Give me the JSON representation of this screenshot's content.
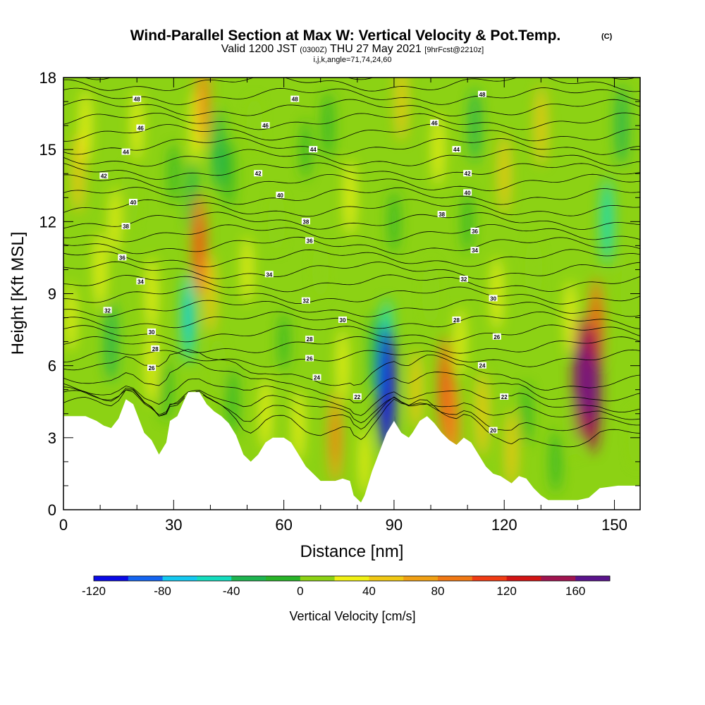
{
  "chart_data": {
    "type": "heatmap",
    "title": "Wind-Parallel Section at Max W: Vertical Velocity & Pot.Temp.",
    "title_mark": "(C)",
    "subtitle": {
      "prefix": "Valid 1200 JST",
      "utc": "(0300Z)",
      "date": "THU 27 May 2021",
      "forecast": "[9hrFcst@2210z]"
    },
    "params": "i,j,k,angle=71,74,24,60",
    "xlabel": "Distance [nm]",
    "ylabel": "Height [Kft MSL]",
    "xlim": [
      0,
      157
    ],
    "ylim": [
      0,
      18
    ],
    "x_ticks": [
      0,
      30,
      60,
      90,
      120,
      150
    ],
    "y_ticks": [
      0,
      3,
      6,
      9,
      12,
      15,
      18
    ],
    "colorbar": {
      "label": "Vertical Velocity [cm/s]",
      "range": [
        -120,
        180
      ],
      "step": 20,
      "tick_values": [
        -120,
        -80,
        -40,
        0,
        40,
        80,
        120,
        160
      ],
      "colors": [
        "#0a0ae6",
        "#1464f0",
        "#14c8f0",
        "#14dcbe",
        "#1eb450",
        "#28b428",
        "#8cd214",
        "#f0f014",
        "#f0c814",
        "#f0a014",
        "#f07814",
        "#f03c14",
        "#d21414",
        "#a01450",
        "#5a148c"
      ]
    },
    "grid": false,
    "terrain_kft": [
      [
        0,
        3.9
      ],
      [
        6,
        3.9
      ],
      [
        9,
        3.7
      ],
      [
        11,
        3.5
      ],
      [
        13,
        3.4
      ],
      [
        15,
        3.8
      ],
      [
        17,
        4.6
      ],
      [
        19,
        4.4
      ],
      [
        22,
        3.2
      ],
      [
        24,
        2.9
      ],
      [
        26,
        2.3
      ],
      [
        28,
        2.8
      ],
      [
        29,
        3.7
      ],
      [
        31,
        3.9
      ],
      [
        33,
        4.6
      ],
      [
        34,
        4.9
      ],
      [
        37,
        4.9
      ],
      [
        39,
        4.4
      ],
      [
        41,
        4.1
      ],
      [
        43,
        3.9
      ],
      [
        45,
        3.6
      ],
      [
        47,
        3.1
      ],
      [
        49,
        2.3
      ],
      [
        51,
        2.0
      ],
      [
        53,
        2.3
      ],
      [
        55,
        2.8
      ],
      [
        57,
        3.0
      ],
      [
        60,
        3.0
      ],
      [
        62,
        2.8
      ],
      [
        64,
        2.3
      ],
      [
        66,
        1.8
      ],
      [
        68,
        1.5
      ],
      [
        70,
        1.2
      ],
      [
        72,
        1.2
      ],
      [
        74,
        1.2
      ],
      [
        76,
        1.3
      ],
      [
        78,
        1.2
      ],
      [
        79,
        0.6
      ],
      [
        81,
        0.3
      ],
      [
        82,
        0.6
      ],
      [
        84,
        1.6
      ],
      [
        86,
        2.4
      ],
      [
        88,
        3.2
      ],
      [
        90,
        3.7
      ],
      [
        92,
        3.2
      ],
      [
        94,
        3.0
      ],
      [
        95,
        3.2
      ],
      [
        97,
        3.7
      ],
      [
        99,
        3.9
      ],
      [
        101,
        3.6
      ],
      [
        103,
        3.2
      ],
      [
        105,
        2.9
      ],
      [
        107,
        2.7
      ],
      [
        109,
        3.0
      ],
      [
        111,
        2.8
      ],
      [
        113,
        2.3
      ],
      [
        115,
        1.8
      ],
      [
        117,
        1.5
      ],
      [
        119,
        1.4
      ],
      [
        122,
        1.1
      ],
      [
        124,
        1.4
      ],
      [
        126,
        1.3
      ],
      [
        128,
        0.9
      ],
      [
        130,
        0.6
      ],
      [
        132,
        0.4
      ],
      [
        134,
        0.4
      ],
      [
        140,
        0.4
      ],
      [
        143,
        0.5
      ],
      [
        146,
        0.9
      ],
      [
        151,
        1.0
      ],
      [
        157,
        1.0
      ]
    ],
    "vertical_velocity_cells": [
      {
        "x": 2,
        "z": 8,
        "w": 20
      },
      {
        "x": 4,
        "z": 14,
        "w": 40
      },
      {
        "x": 6,
        "z": 16,
        "w": 30
      },
      {
        "x": 10,
        "z": 10,
        "w": 35
      },
      {
        "x": 13,
        "z": 7,
        "w": -40
      },
      {
        "x": 14,
        "z": 12,
        "w": 20
      },
      {
        "x": 18,
        "z": 13,
        "w": 10
      },
      {
        "x": 20,
        "z": 16,
        "w": 25
      },
      {
        "x": 24,
        "z": 9,
        "w": 30
      },
      {
        "x": 24,
        "z": 6,
        "w": 35
      },
      {
        "x": 28,
        "z": 5,
        "w": -10
      },
      {
        "x": 30,
        "z": 14,
        "w": -5
      },
      {
        "x": 34,
        "z": 8,
        "w": -60
      },
      {
        "x": 35,
        "z": 13,
        "w": -30
      },
      {
        "x": 36,
        "z": 16,
        "w": 30
      },
      {
        "x": 37,
        "z": 11,
        "w": 80
      },
      {
        "x": 38,
        "z": 17,
        "w": 60
      },
      {
        "x": 40,
        "z": 9,
        "w": 40
      },
      {
        "x": 42,
        "z": 15,
        "w": -40
      },
      {
        "x": 42,
        "z": 6,
        "w": 0
      },
      {
        "x": 45,
        "z": 14,
        "w": -20
      },
      {
        "x": 46,
        "z": 4.5,
        "w": -20
      },
      {
        "x": 50,
        "z": 10,
        "w": 20
      },
      {
        "x": 52,
        "z": 16,
        "w": 0
      },
      {
        "x": 55,
        "z": 4,
        "w": 30
      },
      {
        "x": 58,
        "z": 12,
        "w": 5
      },
      {
        "x": 60,
        "z": 7,
        "w": -5
      },
      {
        "x": 64,
        "z": 3.5,
        "w": 30
      },
      {
        "x": 66,
        "z": 15,
        "w": -5
      },
      {
        "x": 70,
        "z": 10,
        "w": 0
      },
      {
        "x": 72,
        "z": 16,
        "w": -20
      },
      {
        "x": 74,
        "z": 3,
        "w": 60
      },
      {
        "x": 76,
        "z": 6,
        "w": 30
      },
      {
        "x": 78,
        "z": 13,
        "w": 35
      },
      {
        "x": 82,
        "z": 2,
        "w": 20
      },
      {
        "x": 85,
        "z": 6.5,
        "w": -40
      },
      {
        "x": 88,
        "z": 5,
        "w": -120
      },
      {
        "x": 88,
        "z": 7,
        "w": -50
      },
      {
        "x": 90,
        "z": 12,
        "w": -10
      },
      {
        "x": 92,
        "z": 17,
        "w": 40
      },
      {
        "x": 96,
        "z": 5,
        "w": 40
      },
      {
        "x": 100,
        "z": 9,
        "w": 10
      },
      {
        "x": 102,
        "z": 15,
        "w": 30
      },
      {
        "x": 104,
        "z": 5,
        "w": 85
      },
      {
        "x": 106,
        "z": 3.5,
        "w": 70
      },
      {
        "x": 108,
        "z": 7,
        "w": 20
      },
      {
        "x": 110,
        "z": 12,
        "w": -10
      },
      {
        "x": 112,
        "z": 16,
        "w": -30
      },
      {
        "x": 114,
        "z": 4,
        "w": 50
      },
      {
        "x": 118,
        "z": 9,
        "w": 30
      },
      {
        "x": 120,
        "z": 14,
        "w": 40
      },
      {
        "x": 122,
        "z": 2.5,
        "w": 40
      },
      {
        "x": 126,
        "z": 4,
        "w": -10
      },
      {
        "x": 128,
        "z": 10,
        "w": 10
      },
      {
        "x": 130,
        "z": 16,
        "w": 40
      },
      {
        "x": 134,
        "z": 2,
        "w": -10
      },
      {
        "x": 138,
        "z": 8,
        "w": 30
      },
      {
        "x": 139,
        "z": 3.5,
        "w": 10
      },
      {
        "x": 141,
        "z": 5.5,
        "w": 140
      },
      {
        "x": 144,
        "z": 5,
        "w": 150
      },
      {
        "x": 145,
        "z": 7.5,
        "w": 80
      },
      {
        "x": 148,
        "z": 12,
        "w": -50
      },
      {
        "x": 152,
        "z": 16,
        "w": -40
      },
      {
        "x": 154,
        "z": 9,
        "w": 10
      },
      {
        "x": 156,
        "z": 3,
        "w": 0
      }
    ],
    "theta_contour_labels": [
      {
        "text": "48",
        "x": 20,
        "z": 17.1
      },
      {
        "text": "46",
        "x": 21,
        "z": 15.9
      },
      {
        "text": "44",
        "x": 17,
        "z": 14.9
      },
      {
        "text": "42",
        "x": 11,
        "z": 13.9
      },
      {
        "text": "40",
        "x": 19,
        "z": 12.8
      },
      {
        "text": "38",
        "x": 17,
        "z": 11.8
      },
      {
        "text": "36",
        "x": 16,
        "z": 10.5
      },
      {
        "text": "34",
        "x": 21,
        "z": 9.5
      },
      {
        "text": "32",
        "x": 12,
        "z": 8.3
      },
      {
        "text": "30",
        "x": 24,
        "z": 7.4
      },
      {
        "text": "28",
        "x": 25,
        "z": 6.7
      },
      {
        "text": "26",
        "x": 24,
        "z": 5.9
      },
      {
        "text": "48",
        "x": 63,
        "z": 17.1
      },
      {
        "text": "46",
        "x": 55,
        "z": 16.0
      },
      {
        "text": "44",
        "x": 68,
        "z": 15.0
      },
      {
        "text": "42",
        "x": 53,
        "z": 14.0
      },
      {
        "text": "40",
        "x": 59,
        "z": 13.1
      },
      {
        "text": "38",
        "x": 66,
        "z": 12.0
      },
      {
        "text": "36",
        "x": 67,
        "z": 11.2
      },
      {
        "text": "34",
        "x": 56,
        "z": 9.8
      },
      {
        "text": "32",
        "x": 66,
        "z": 8.7
      },
      {
        "text": "30",
        "x": 76,
        "z": 7.9
      },
      {
        "text": "28",
        "x": 67,
        "z": 7.1
      },
      {
        "text": "26",
        "x": 67,
        "z": 6.3
      },
      {
        "text": "24",
        "x": 69,
        "z": 5.5
      },
      {
        "text": "22",
        "x": 80,
        "z": 4.7
      },
      {
        "text": "48",
        "x": 114,
        "z": 17.3
      },
      {
        "text": "46",
        "x": 101,
        "z": 16.1
      },
      {
        "text": "44",
        "x": 107,
        "z": 15.0
      },
      {
        "text": "42",
        "x": 110,
        "z": 14.0
      },
      {
        "text": "40",
        "x": 110,
        "z": 13.2
      },
      {
        "text": "38",
        "x": 103,
        "z": 12.3
      },
      {
        "text": "36",
        "x": 112,
        "z": 11.6
      },
      {
        "text": "34",
        "x": 112,
        "z": 10.8
      },
      {
        "text": "32",
        "x": 109,
        "z": 9.6
      },
      {
        "text": "30",
        "x": 117,
        "z": 8.8
      },
      {
        "text": "28",
        "x": 107,
        "z": 7.9
      },
      {
        "text": "26",
        "x": 118,
        "z": 7.2
      },
      {
        "text": "24",
        "x": 114,
        "z": 6.0
      },
      {
        "text": "22",
        "x": 120,
        "z": 4.7
      },
      {
        "text": "20",
        "x": 117,
        "z": 3.3
      }
    ],
    "theta_levels": [
      20,
      22,
      24,
      26,
      28,
      30,
      32,
      34,
      36,
      38,
      40,
      42,
      44,
      46,
      48
    ]
  }
}
